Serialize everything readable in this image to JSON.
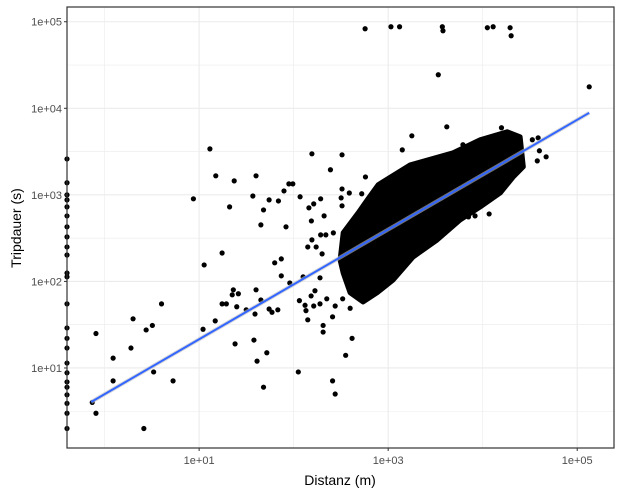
{
  "chart_data": {
    "type": "scatter",
    "xlabel": "Distanz (m)",
    "ylabel": "Tripdauer (s)",
    "x_scale": "log10",
    "y_scale": "log10",
    "xlim": [
      0.4,
      245000
    ],
    "ylim": [
      1.19,
      148000
    ],
    "x_ticks": [
      {
        "value": 10,
        "label": "1e+01"
      },
      {
        "value": 1000,
        "label": "1e+03"
      },
      {
        "value": 100000,
        "label": "1e+05"
      }
    ],
    "y_ticks": [
      {
        "value": 10,
        "label": "1e+01"
      },
      {
        "value": 100,
        "label": "1e+02"
      },
      {
        "value": 1000,
        "label": "1e+03"
      },
      {
        "value": 10000,
        "label": "1e+04"
      },
      {
        "value": 100000,
        "label": "1e+05"
      }
    ],
    "x_minor_grid": [
      1,
      100,
      10000
    ],
    "grid": true,
    "point_color": "#000000",
    "trend_line": {
      "method": "smooth (linear, log-log)",
      "color": "#3366FF",
      "ribbon_color": "#BEBEBE",
      "from": [
        0.72,
        4.05
      ],
      "to": [
        134000,
        8870
      ]
    },
    "dense_cloud_outline": [
      [
        310,
        177
      ],
      [
        334,
        364
      ],
      [
        482,
        620
      ],
      [
        600,
        875
      ],
      [
        784,
        1310
      ],
      [
        1710,
        2220
      ],
      [
        4880,
        3060
      ],
      [
        9420,
        4330
      ],
      [
        18200,
        5350
      ],
      [
        24900,
        4690
      ],
      [
        26900,
        2110
      ],
      [
        21000,
        1610
      ],
      [
        15300,
        1050
      ],
      [
        9420,
        726
      ],
      [
        5780,
        514
      ],
      [
        3300,
        302
      ],
      [
        1840,
        192
      ],
      [
        1130,
        104
      ],
      [
        765,
        74
      ],
      [
        543,
        58
      ],
      [
        396,
        74
      ],
      [
        334,
        125
      ]
    ],
    "points": [
      [
        0.4,
        2600
      ],
      [
        0.4,
        1380
      ],
      [
        0.4,
        1000
      ],
      [
        0.4,
        875
      ],
      [
        0.4,
        726
      ],
      [
        0.4,
        571
      ],
      [
        0.4,
        427
      ],
      [
        0.4,
        327
      ],
      [
        0.4,
        250
      ],
      [
        0.4,
        202
      ],
      [
        0.4,
        125
      ],
      [
        0.4,
        113
      ],
      [
        0.4,
        55
      ],
      [
        0.4,
        29
      ],
      [
        0.4,
        22
      ],
      [
        0.4,
        17
      ],
      [
        0.4,
        11.4
      ],
      [
        0.4,
        8.8
      ],
      [
        0.4,
        6.9
      ],
      [
        0.4,
        6.0
      ],
      [
        0.4,
        4.9
      ],
      [
        0.4,
        3.9
      ],
      [
        0.4,
        3.0
      ],
      [
        0.4,
        2.0
      ],
      [
        0.81,
        25
      ],
      [
        0.74,
        4.0
      ],
      [
        0.81,
        3.0
      ],
      [
        1.23,
        13
      ],
      [
        1.23,
        7.1
      ],
      [
        1.9,
        17
      ],
      [
        2.0,
        37
      ],
      [
        2.6,
        2.0
      ],
      [
        2.75,
        27.5
      ],
      [
        3.2,
        31
      ],
      [
        3.3,
        9.0
      ],
      [
        4.0,
        55
      ],
      [
        5.3,
        7.1
      ],
      [
        8.7,
        900
      ],
      [
        11.3,
        155
      ],
      [
        11,
        28
      ],
      [
        13,
        3400
      ],
      [
        14.8,
        35
      ],
      [
        15,
        1660
      ],
      [
        17.5,
        213
      ],
      [
        17.5,
        55
      ],
      [
        19.4,
        55
      ],
      [
        21,
        726
      ],
      [
        22.4,
        70
      ],
      [
        23,
        80
      ],
      [
        26,
        72
      ],
      [
        23.5,
        1450
      ],
      [
        24,
        19
      ],
      [
        25,
        51
      ],
      [
        31.5,
        47
      ],
      [
        37,
        970
      ],
      [
        38,
        21
      ],
      [
        39,
        42
      ],
      [
        40,
        1660
      ],
      [
        40,
        80
      ],
      [
        41,
        12
      ],
      [
        45,
        450
      ],
      [
        45,
        61
      ],
      [
        48,
        670
      ],
      [
        48,
        6.0
      ],
      [
        52,
        15
      ],
      [
        55,
        875
      ],
      [
        55,
        48
      ],
      [
        59,
        44
      ],
      [
        63,
        164
      ],
      [
        68,
        47
      ],
      [
        69,
        850
      ],
      [
        74,
        182
      ],
      [
        74,
        116
      ],
      [
        79,
        1110
      ],
      [
        83,
        427
      ],
      [
        89,
        1340
      ],
      [
        91,
        96
      ],
      [
        98,
        1340
      ],
      [
        112,
        9.0
      ],
      [
        115,
        60
      ],
      [
        117,
        950
      ],
      [
        126,
        113
      ],
      [
        132,
        53
      ],
      [
        135,
        46
      ],
      [
        141,
        36
      ],
      [
        145,
        708
      ],
      [
        154,
        500
      ],
      [
        156,
        2980
      ],
      [
        153,
        68
      ],
      [
        163,
        787
      ],
      [
        163,
        52
      ],
      [
        168,
        78
      ],
      [
        141,
        250
      ],
      [
        156,
        302
      ],
      [
        570,
        83000
      ],
      [
        1070,
        87500
      ],
      [
        1320,
        87500
      ],
      [
        3740,
        87500
      ],
      [
        3800,
        78700
      ],
      [
        11200,
        85300
      ],
      [
        12900,
        87500
      ],
      [
        19500,
        85300
      ],
      [
        20000,
        68900
      ],
      [
        3390,
        24400
      ],
      [
        134000,
        17700
      ],
      [
        4170,
        6110
      ],
      [
        1780,
        4810
      ],
      [
        325,
        2900
      ],
      [
        245,
        1950
      ],
      [
        575,
        1610
      ],
      [
        1410,
        3310
      ],
      [
        6180,
        3790
      ],
      [
        15800,
        5960
      ],
      [
        33500,
        4330
      ],
      [
        38600,
        4560
      ],
      [
        39800,
        3230
      ],
      [
        37800,
        2470
      ],
      [
        46900,
        2750
      ],
      [
        11700,
        602
      ],
      [
        7070,
        557
      ],
      [
        8300,
        572
      ],
      [
        415,
        22
      ],
      [
        355,
        14
      ],
      [
        258,
        7.1
      ],
      [
        275,
        5.0
      ],
      [
        205,
        31
      ],
      [
        205,
        26
      ],
      [
        258,
        39
      ],
      [
        396,
        49
      ],
      [
        275,
        52
      ],
      [
        190,
        55
      ],
      [
        224,
        63
      ],
      [
        330,
        63
      ],
      [
        325,
        1170
      ],
      [
        388,
        1050
      ],
      [
        318,
        922
      ],
      [
        193,
        900
      ],
      [
        210,
        572
      ],
      [
        325,
        747
      ],
      [
        525,
        1030
      ],
      [
        330,
        272
      ],
      [
        200,
        208
      ],
      [
        173,
        250
      ],
      [
        193,
        345
      ],
      [
        219,
        345
      ],
      [
        263,
        364
      ],
      [
        190,
        110
      ]
    ]
  }
}
